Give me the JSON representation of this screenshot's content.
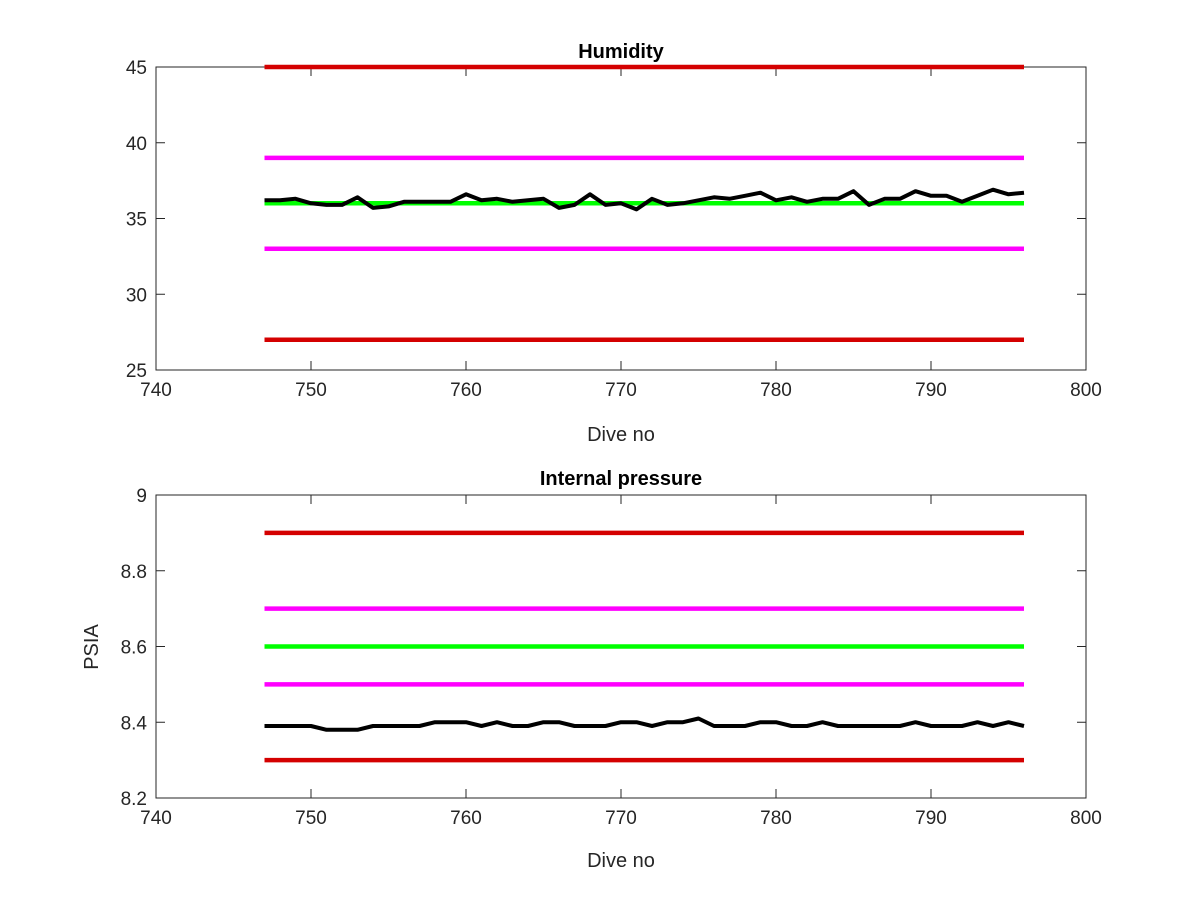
{
  "chart_data": [
    {
      "type": "line",
      "title": "Humidity",
      "xlabel": "Dive no",
      "ylabel": "",
      "xlim": [
        740,
        800
      ],
      "ylim": [
        25,
        45
      ],
      "xticks": [
        740,
        750,
        760,
        770,
        780,
        790,
        800
      ],
      "yticks": [
        25,
        30,
        35,
        40,
        45
      ],
      "grid": false,
      "series": [
        {
          "x": [
            747,
            796
          ],
          "values": [
            45,
            45
          ],
          "color": "#d40000"
        },
        {
          "x": [
            747,
            796
          ],
          "values": [
            39,
            39
          ],
          "color": "#ff00ff"
        },
        {
          "x": [
            747,
            796
          ],
          "values": [
            36,
            36
          ],
          "color": "#00ff00"
        },
        {
          "x": [
            747,
            796
          ],
          "values": [
            33,
            33
          ],
          "color": "#ff00ff"
        },
        {
          "x": [
            747,
            796
          ],
          "values": [
            27,
            27
          ],
          "color": "#d40000"
        },
        {
          "x": [
            747,
            748,
            749,
            750,
            751,
            752,
            753,
            754,
            755,
            756,
            757,
            758,
            759,
            760,
            761,
            762,
            763,
            764,
            765,
            766,
            767,
            768,
            769,
            770,
            771,
            772,
            773,
            774,
            775,
            776,
            777,
            778,
            779,
            780,
            781,
            782,
            783,
            784,
            785,
            786,
            787,
            788,
            789,
            790,
            791,
            792,
            793,
            794,
            795,
            796
          ],
          "values": [
            36.2,
            36.2,
            36.3,
            36.0,
            35.9,
            35.9,
            36.4,
            35.7,
            35.8,
            36.1,
            36.1,
            36.1,
            36.1,
            36.6,
            36.2,
            36.3,
            36.1,
            36.2,
            36.3,
            35.7,
            35.9,
            36.6,
            35.9,
            36.0,
            35.6,
            36.3,
            35.9,
            36.0,
            36.2,
            36.4,
            36.3,
            36.5,
            36.7,
            36.2,
            36.4,
            36.1,
            36.3,
            36.3,
            36.8,
            35.9,
            36.3,
            36.3,
            36.8,
            36.5,
            36.5,
            36.1,
            36.5,
            36.9,
            36.6,
            36.7
          ],
          "color": "#000000"
        }
      ]
    },
    {
      "type": "line",
      "title": "Internal pressure",
      "xlabel": "Dive no",
      "ylabel": "PSIA",
      "xlim": [
        740,
        800
      ],
      "ylim": [
        8.2,
        9
      ],
      "xticks": [
        740,
        750,
        760,
        770,
        780,
        790,
        800
      ],
      "yticks": [
        8.2,
        8.4,
        8.6,
        8.8,
        9
      ],
      "grid": false,
      "series": [
        {
          "x": [
            747,
            796
          ],
          "values": [
            8.9,
            8.9
          ],
          "color": "#d40000"
        },
        {
          "x": [
            747,
            796
          ],
          "values": [
            8.7,
            8.7
          ],
          "color": "#ff00ff"
        },
        {
          "x": [
            747,
            796
          ],
          "values": [
            8.6,
            8.6
          ],
          "color": "#00ff00"
        },
        {
          "x": [
            747,
            796
          ],
          "values": [
            8.5,
            8.5
          ],
          "color": "#ff00ff"
        },
        {
          "x": [
            747,
            796
          ],
          "values": [
            8.3,
            8.3
          ],
          "color": "#d40000"
        },
        {
          "x": [
            747,
            748,
            749,
            750,
            751,
            752,
            753,
            754,
            755,
            756,
            757,
            758,
            759,
            760,
            761,
            762,
            763,
            764,
            765,
            766,
            767,
            768,
            769,
            770,
            771,
            772,
            773,
            774,
            775,
            776,
            777,
            778,
            779,
            780,
            781,
            782,
            783,
            784,
            785,
            786,
            787,
            788,
            789,
            790,
            791,
            792,
            793,
            794,
            795,
            796
          ],
          "values": [
            8.39,
            8.39,
            8.39,
            8.39,
            8.38,
            8.38,
            8.38,
            8.39,
            8.39,
            8.39,
            8.39,
            8.4,
            8.4,
            8.4,
            8.39,
            8.4,
            8.39,
            8.39,
            8.4,
            8.4,
            8.39,
            8.39,
            8.39,
            8.4,
            8.4,
            8.39,
            8.4,
            8.4,
            8.41,
            8.39,
            8.39,
            8.39,
            8.4,
            8.4,
            8.39,
            8.39,
            8.4,
            8.39,
            8.39,
            8.39,
            8.39,
            8.39,
            8.4,
            8.39,
            8.39,
            8.39,
            8.4,
            8.39,
            8.4,
            8.39
          ],
          "color": "#000000"
        }
      ]
    }
  ]
}
